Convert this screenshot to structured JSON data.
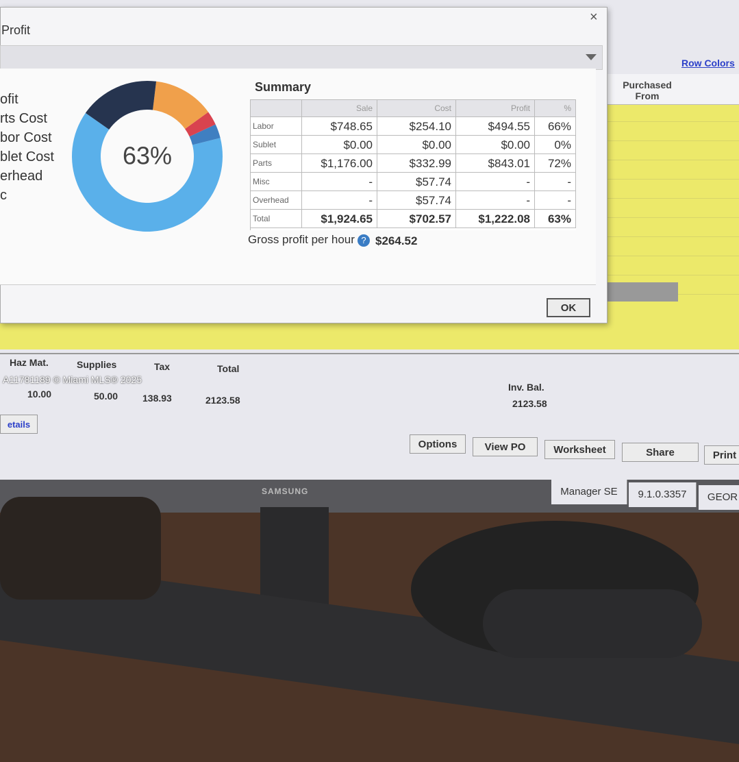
{
  "dialog": {
    "title": "Profit",
    "close": "×",
    "donut": {
      "center_label": "63%",
      "legend": [
        "ofit",
        "rts Cost",
        "bor Cost",
        "blet Cost",
        "erhead",
        "c"
      ],
      "values": [
        17,
        13,
        3,
        3,
        63
      ],
      "colors": [
        "#26344f",
        "#f0a04b",
        "#d9434f",
        "#3f7fc1",
        "#5ab0ea"
      ]
    },
    "summary": {
      "title": "Summary",
      "columns": [
        "Sale",
        "Cost",
        "Profit",
        "%"
      ],
      "rows": [
        [
          "Labor",
          "$748.65",
          "$254.10",
          "$494.55",
          "66%"
        ],
        [
          "Sublet",
          "$0.00",
          "$0.00",
          "$0.00",
          "0%"
        ],
        [
          "Parts",
          "$1,176.00",
          "$332.99",
          "$843.01",
          "72%"
        ],
        [
          "Misc",
          "-",
          "$57.74",
          "-",
          "-"
        ],
        [
          "Overhead",
          "-",
          "$57.74",
          "-",
          "-"
        ],
        [
          "Total",
          "$1,924.65",
          "$702.57",
          "$1,222.08",
          "63%"
        ]
      ]
    },
    "gross_profit": {
      "label": "Gross profit per hour",
      "value": "$264.52"
    },
    "ok": "OK"
  },
  "background": {
    "row_colors": "Row Colors",
    "purchased_from": "Purchased From"
  },
  "totals": {
    "headers": [
      "Haz Mat.",
      "Supplies",
      "Tax",
      "Total"
    ],
    "values": [
      "10.00",
      "50.00",
      "138.93",
      "2123.58"
    ],
    "inv_bal_label": "Inv. Bal.",
    "inv_bal": "2123.58"
  },
  "details": "etails",
  "buttons": [
    "Options",
    "View PO",
    "Worksheet",
    "Share",
    "Print"
  ],
  "status": [
    "Manager SE",
    "9.1.0.3357",
    "GEOR"
  ],
  "brand": "SAMSUNG",
  "watermark": "A11781189 © Miami MLS® 2025"
}
